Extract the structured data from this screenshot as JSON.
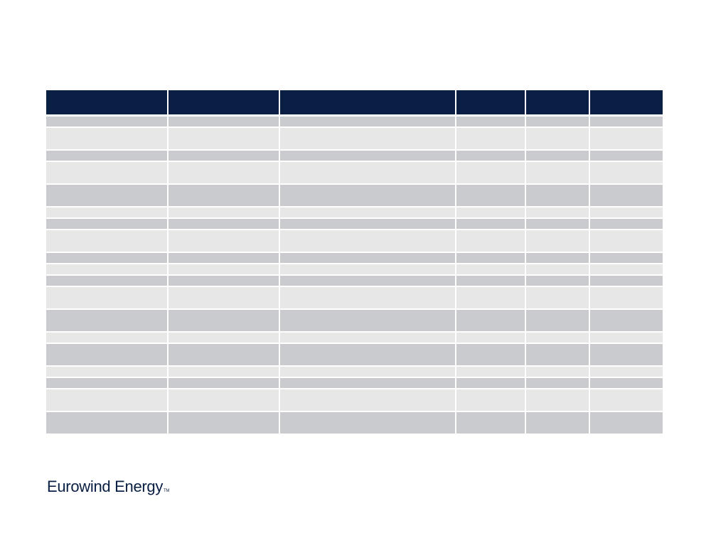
{
  "table": {
    "headers": [
      "",
      "",
      "",
      "",
      "",
      ""
    ],
    "rows": [
      {
        "tone": "dark",
        "size": "s",
        "cells": [
          "",
          "",
          "",
          "",
          "",
          ""
        ]
      },
      {
        "tone": "light",
        "size": "l",
        "cells": [
          "",
          "",
          "",
          "",
          "",
          ""
        ]
      },
      {
        "tone": "dark",
        "size": "s",
        "cells": [
          "",
          "",
          "",
          "",
          "",
          ""
        ]
      },
      {
        "tone": "light",
        "size": "l",
        "cells": [
          "",
          "",
          "",
          "",
          "",
          ""
        ]
      },
      {
        "tone": "dark",
        "size": "l",
        "cells": [
          "",
          "",
          "",
          "",
          "",
          ""
        ]
      },
      {
        "tone": "light",
        "size": "s",
        "cells": [
          "",
          "",
          "",
          "",
          "",
          ""
        ]
      },
      {
        "tone": "dark",
        "size": "s",
        "cells": [
          "",
          "",
          "",
          "",
          "",
          ""
        ]
      },
      {
        "tone": "light",
        "size": "l",
        "cells": [
          "",
          "",
          "",
          "",
          "",
          ""
        ]
      },
      {
        "tone": "dark",
        "size": "s",
        "cells": [
          "",
          "",
          "",
          "",
          "",
          ""
        ]
      },
      {
        "tone": "light",
        "size": "s",
        "cells": [
          "",
          "",
          "",
          "",
          "",
          ""
        ]
      },
      {
        "tone": "dark",
        "size": "s",
        "cells": [
          "",
          "",
          "",
          "",
          "",
          ""
        ]
      },
      {
        "tone": "light",
        "size": "l",
        "cells": [
          "",
          "",
          "",
          "",
          "",
          ""
        ]
      },
      {
        "tone": "dark",
        "size": "l",
        "cells": [
          "",
          "",
          "",
          "",
          "",
          ""
        ]
      },
      {
        "tone": "light",
        "size": "s",
        "cells": [
          "",
          "",
          "",
          "",
          "",
          ""
        ]
      },
      {
        "tone": "dark",
        "size": "l",
        "cells": [
          "",
          "",
          "",
          "",
          "",
          ""
        ]
      },
      {
        "tone": "light",
        "size": "s",
        "cells": [
          "",
          "",
          "",
          "",
          "",
          ""
        ]
      },
      {
        "tone": "dark",
        "size": "s",
        "cells": [
          "",
          "",
          "",
          "",
          "",
          ""
        ]
      },
      {
        "tone": "light",
        "size": "l",
        "cells": [
          "",
          "",
          "",
          "",
          "",
          ""
        ]
      },
      {
        "tone": "dark",
        "size": "l",
        "cells": [
          "",
          "",
          "",
          "",
          "",
          ""
        ]
      }
    ]
  },
  "logo": {
    "name": "Eurowind Energy",
    "tm": "TM"
  },
  "colors": {
    "header": "#0a1f44",
    "row_dark": "#cacbce",
    "row_light": "#e7e7e8",
    "logo": "#0a1f44"
  }
}
